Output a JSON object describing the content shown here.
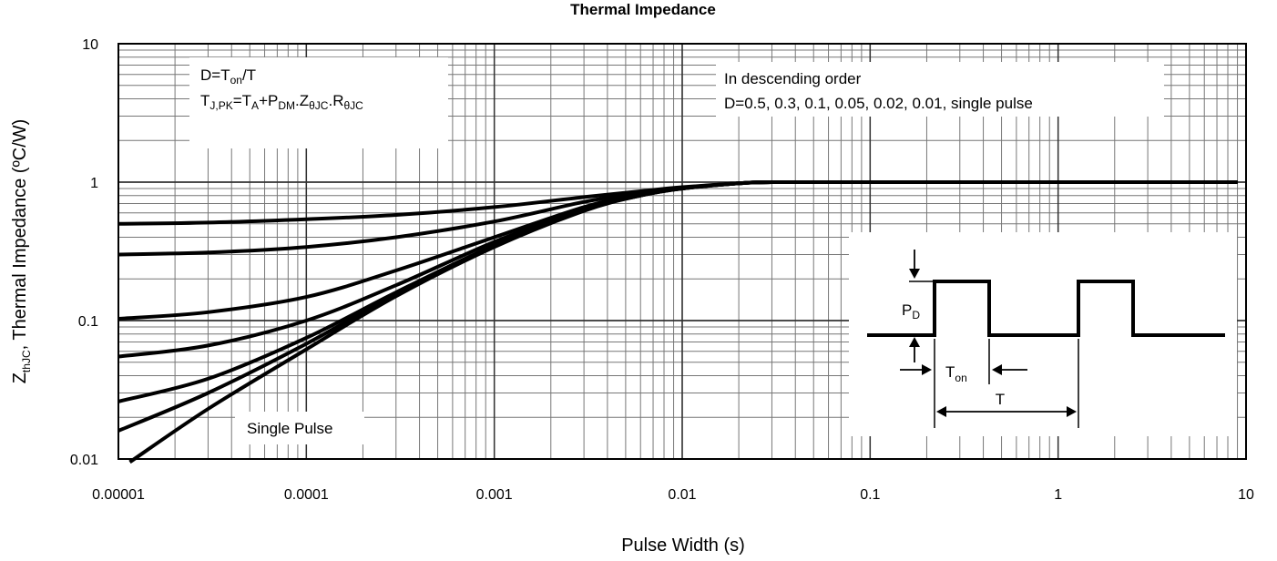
{
  "chart_data": {
    "type": "line",
    "title": "Thermal Impedance",
    "xlabel": "Pulse Width (s)",
    "ylabel": {
      "main": "Z",
      "sub": "thJC",
      "rest": ", Thermal Impedance (ºC/W)"
    },
    "x_scale": "log",
    "y_scale": "log",
    "xlim": [
      1e-05,
      10
    ],
    "ylim": [
      0.01,
      10
    ],
    "grid": true,
    "x_ticks": [
      "0.00001",
      "0.0001",
      "0.001",
      "0.01",
      "0.1",
      "1",
      "10"
    ],
    "y_ticks": [
      "0.01",
      "0.1",
      "1",
      "10"
    ],
    "series": [
      {
        "name": "D=0.5",
        "x": [
          1e-05,
          3e-05,
          0.0001,
          0.0003,
          0.001,
          0.003,
          0.006,
          0.01,
          0.02,
          0.03,
          0.1,
          1,
          9
        ],
        "y": [
          0.5,
          0.51,
          0.54,
          0.58,
          0.66,
          0.78,
          0.86,
          0.92,
          0.98,
          1.0,
          1.0,
          1.0,
          1.0
        ]
      },
      {
        "name": "D=0.3",
        "x": [
          1e-05,
          3e-05,
          0.0001,
          0.0003,
          0.001,
          0.003,
          0.006,
          0.01,
          0.02,
          0.03,
          0.1,
          1,
          9
        ],
        "y": [
          0.3,
          0.31,
          0.34,
          0.4,
          0.52,
          0.72,
          0.84,
          0.91,
          0.98,
          1.0,
          1.0,
          1.0,
          1.0
        ]
      },
      {
        "name": "D=0.1",
        "x": [
          1e-05,
          3e-05,
          0.0001,
          0.0003,
          0.001,
          0.003,
          0.006,
          0.01,
          0.02,
          0.03,
          0.1,
          1,
          9
        ],
        "y": [
          0.103,
          0.115,
          0.148,
          0.23,
          0.4,
          0.66,
          0.82,
          0.9,
          0.98,
          1.0,
          1.0,
          1.0,
          1.0
        ]
      },
      {
        "name": "D=0.05",
        "x": [
          1e-05,
          3e-05,
          0.0001,
          0.0003,
          0.001,
          0.003,
          0.006,
          0.01,
          0.02,
          0.03,
          0.1,
          1,
          9
        ],
        "y": [
          0.055,
          0.066,
          0.1,
          0.18,
          0.37,
          0.64,
          0.81,
          0.9,
          0.98,
          1.0,
          1.0,
          1.0,
          1.0
        ]
      },
      {
        "name": "D=0.02",
        "x": [
          1e-05,
          3e-05,
          0.0001,
          0.0003,
          0.001,
          0.003,
          0.006,
          0.01,
          0.02,
          0.03,
          0.1,
          1,
          9
        ],
        "y": [
          0.026,
          0.038,
          0.075,
          0.16,
          0.35,
          0.63,
          0.8,
          0.9,
          0.98,
          1.0,
          1.0,
          1.0,
          1.0
        ]
      },
      {
        "name": "D=0.01",
        "x": [
          1e-05,
          3e-05,
          0.0001,
          0.0003,
          0.001,
          0.003,
          0.006,
          0.01,
          0.02,
          0.03,
          0.1,
          1,
          9
        ],
        "y": [
          0.016,
          0.03,
          0.068,
          0.155,
          0.345,
          0.625,
          0.8,
          0.9,
          0.98,
          1.0,
          1.0,
          1.0,
          1.0
        ]
      },
      {
        "name": "single pulse",
        "x": [
          1.15e-05,
          3e-05,
          0.0001,
          0.0003,
          0.001,
          0.003,
          0.006,
          0.01,
          0.02,
          0.03,
          0.1,
          1,
          9
        ],
        "y": [
          0.0095,
          0.023,
          0.062,
          0.15,
          0.34,
          0.62,
          0.8,
          0.9,
          0.98,
          1.0,
          1.0,
          1.0,
          1.0
        ]
      }
    ],
    "annotations": {
      "formula_box": {
        "line1": {
          "a": "D=T",
          "a_sub": "on",
          "b": "/T"
        },
        "line2": {
          "t": "T",
          "t_sub": "J,PK",
          "eq": "=T",
          "ta_sub": "A",
          "plus": "+P",
          "pdm_sub": "DM",
          "z": ".Z",
          "z_sub": "θJC",
          "r": ".R",
          "r_sub": "θJC"
        }
      },
      "order_note": {
        "line1": "In descending order",
        "line2": "D=0.5, 0.3, 0.1, 0.05, 0.02, 0.01, single pulse"
      },
      "single_pulse_label": "Single Pulse",
      "waveform": {
        "pd_main": "P",
        "pd_sub": "D",
        "ton_main": "T",
        "ton_sub": "on",
        "period": "T"
      }
    }
  }
}
